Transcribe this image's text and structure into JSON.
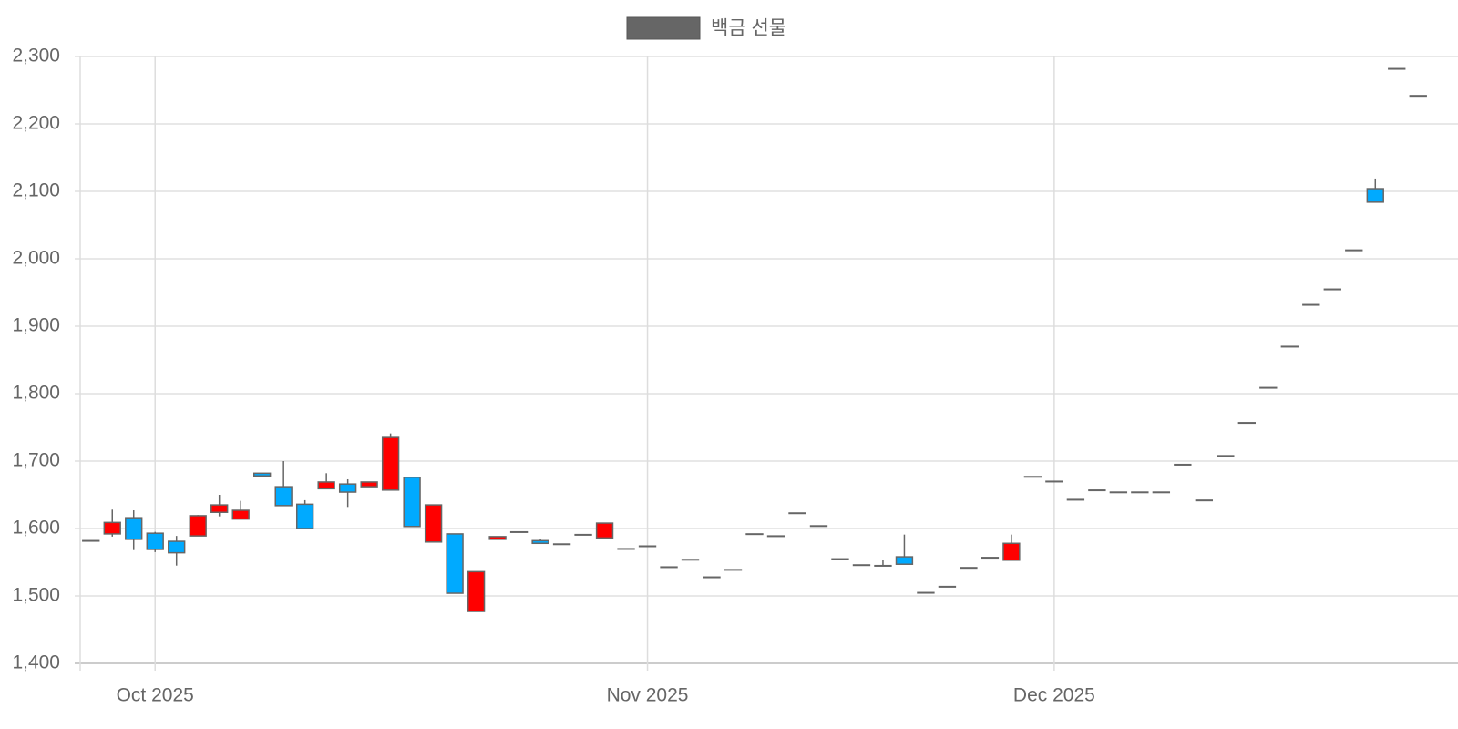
{
  "chart_data": {
    "type": "candlestick",
    "categories": [
      null,
      null,
      null,
      "Oct 2025",
      null,
      null,
      null,
      null,
      null,
      null,
      null,
      null,
      null,
      null,
      null,
      null,
      null,
      null,
      null,
      null,
      null,
      null,
      null,
      null,
      null,
      null,
      "Nov 2025",
      null,
      null,
      null,
      null,
      null,
      null,
      null,
      null,
      null,
      null,
      null,
      null,
      null,
      null,
      null,
      null,
      null,
      null,
      "Dec 2025",
      null,
      null,
      null,
      null,
      null,
      null,
      null,
      null,
      null,
      null,
      null,
      null,
      null,
      null,
      null,
      null,
      null
    ],
    "series": [
      {
        "name": "백금 선물",
        "color": "#666666",
        "up_color": "#ff0000",
        "down_color": "#00aaff",
        "open": [
          1582,
          1592,
          1616,
          1593,
          1581,
          1589,
          1624,
          1614,
          1682,
          1662,
          1636,
          1659,
          1666,
          1662,
          1657,
          1676,
          1580,
          1592,
          1477,
          1584,
          1595,
          1582,
          1577,
          1591,
          1586,
          1570,
          1574,
          1543,
          1554,
          1528,
          1539,
          1592,
          1589,
          1623,
          1604,
          1555,
          1546,
          1545,
          1558,
          1505,
          1514,
          1542,
          1557,
          1553,
          1677,
          1670,
          1643,
          1657,
          1654,
          1654,
          1654,
          1695,
          1642,
          1708,
          1757,
          1809,
          1870,
          1932,
          1955,
          2013,
          2104,
          2282,
          2242
        ],
        "high": [
          1582,
          1628,
          1627,
          1595,
          1589,
          1620,
          1650,
          1641,
          1682,
          1700,
          1642,
          1682,
          1673,
          1669,
          1741,
          1676,
          1635,
          1592,
          1536,
          1588,
          1595,
          1585,
          1577,
          1591,
          1608,
          1570,
          1574,
          1543,
          1554,
          1528,
          1539,
          1592,
          1589,
          1623,
          1604,
          1555,
          1546,
          1553,
          1591,
          1505,
          1514,
          1542,
          1557,
          1591,
          1677,
          1670,
          1643,
          1657,
          1654,
          1654,
          1654,
          1695,
          1642,
          1708,
          1757,
          1809,
          1870,
          1932,
          1955,
          2013,
          2119,
          2282,
          2242
        ],
        "low": [
          1582,
          1588,
          1568,
          1565,
          1545,
          1589,
          1618,
          1614,
          1678,
          1634,
          1600,
          1659,
          1632,
          1662,
          1657,
          1603,
          1580,
          1504,
          1477,
          1584,
          1595,
          1578,
          1577,
          1591,
          1586,
          1570,
          1574,
          1543,
          1554,
          1528,
          1539,
          1592,
          1589,
          1623,
          1604,
          1555,
          1546,
          1545,
          1547,
          1505,
          1514,
          1542,
          1557,
          1553,
          1677,
          1670,
          1643,
          1657,
          1654,
          1654,
          1654,
          1695,
          1642,
          1708,
          1757,
          1809,
          1870,
          1932,
          1955,
          2013,
          2084,
          2282,
          2242
        ],
        "close": [
          1582,
          1609,
          1584,
          1569,
          1564,
          1619,
          1635,
          1627,
          1678,
          1634,
          1600,
          1669,
          1654,
          1669,
          1735,
          1603,
          1635,
          1504,
          1536,
          1588,
          1595,
          1578,
          1577,
          1591,
          1608,
          1570,
          1574,
          1543,
          1554,
          1528,
          1539,
          1592,
          1589,
          1623,
          1604,
          1555,
          1546,
          1545,
          1547,
          1505,
          1514,
          1542,
          1557,
          1578,
          1677,
          1670,
          1643,
          1657,
          1654,
          1654,
          1654,
          1695,
          1642,
          1708,
          1757,
          1809,
          1870,
          1932,
          1955,
          2013,
          2084,
          2282,
          2242
        ]
      }
    ],
    "ylim": [
      1400,
      2300
    ],
    "yticks": [
      {
        "value": 1400,
        "label": "1,400"
      },
      {
        "value": 1500,
        "label": "1,500"
      },
      {
        "value": 1600,
        "label": "1,600"
      },
      {
        "value": 1700,
        "label": "1,700"
      },
      {
        "value": 1800,
        "label": "1,800"
      },
      {
        "value": 1900,
        "label": "1,900"
      },
      {
        "value": 2000,
        "label": "2,000"
      },
      {
        "value": 2100,
        "label": "2,100"
      },
      {
        "value": 2200,
        "label": "2,200"
      },
      {
        "value": 2300,
        "label": "2,300"
      }
    ],
    "grid": true
  }
}
